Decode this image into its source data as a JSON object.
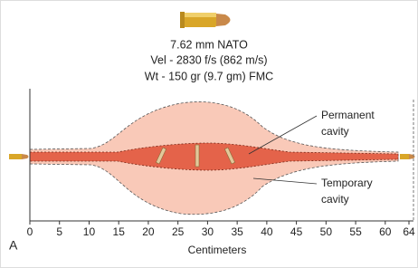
{
  "header": {
    "lines": [
      "7.62 mm NATO",
      "Vel - 2830 f/s (862 m/s)",
      "Wt - 150 gr (9.7 gm) FMC"
    ]
  },
  "labels": {
    "permanent": [
      "Permanent",
      "cavity"
    ],
    "temporary": [
      "Temporary",
      "cavity"
    ]
  },
  "axis": {
    "ticks": [
      0,
      5,
      10,
      15,
      20,
      25,
      30,
      35,
      40,
      45,
      50,
      55,
      60,
      64
    ],
    "label": "Centimeters"
  },
  "panel": "A"
}
